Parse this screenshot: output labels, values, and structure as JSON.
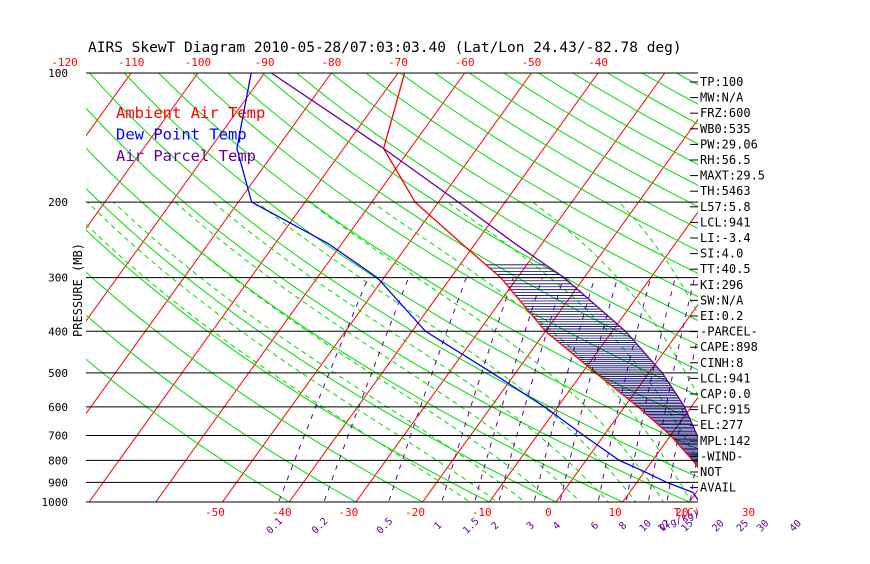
{
  "chart_data": {
    "type": "line",
    "title": "AIRS SkewT Diagram 2010-05-28/07:03:03.40 (Lat/Lon 24.43/-82.78 deg)",
    "ylabel": "PRESSURE (MB)",
    "xlabel_bottom_unit": "T(C)",
    "mixing_ratio_unit": "q(g/kg)",
    "pressure_ticks": [
      "100",
      "200",
      "300",
      "400",
      "500",
      "600",
      "700",
      "800",
      "900",
      "1000"
    ],
    "top_temp_ticks": [
      "-120",
      "-110",
      "-100",
      "-90",
      "-80",
      "-70",
      "-60",
      "-50",
      "-40"
    ],
    "bottom_temp_ticks": [
      "-50",
      "-40",
      "-30",
      "-20",
      "-10",
      "0",
      "10",
      "20",
      "30"
    ],
    "mixing_ratio_ticks": [
      "0.1",
      "0.2",
      "0.5",
      "1",
      "1.5",
      "2",
      "3",
      "4",
      "6",
      "8",
      "10",
      "12",
      "15",
      "20",
      "25",
      "30",
      "40"
    ],
    "legend": [
      {
        "name": "Ambient Air Temp",
        "color": "#ff0000"
      },
      {
        "name": "Dew Point Temp",
        "color": "#0000ff"
      },
      {
        "name": "Air Parcel Temp",
        "color": "#660099"
      }
    ],
    "series": [
      {
        "name": "Ambient Air Temp",
        "color": "#ff0000",
        "points": [
          [
            1000,
            26.3
          ],
          [
            950,
            23.0
          ],
          [
            900,
            19.5
          ],
          [
            850,
            18.5
          ],
          [
            800,
            16.0
          ],
          [
            700,
            10.0
          ],
          [
            600,
            2.0
          ],
          [
            500,
            -8.0
          ],
          [
            400,
            -20.0
          ],
          [
            300,
            -32.5
          ],
          [
            250,
            -42.0
          ],
          [
            200,
            -53.5
          ],
          [
            150,
            -64.0
          ],
          [
            100,
            -69.0
          ]
        ]
      },
      {
        "name": "Dew Point Temp",
        "color": "#0000ff",
        "points": [
          [
            1000,
            21.5
          ],
          [
            950,
            19.5
          ],
          [
            900,
            14.5
          ],
          [
            850,
            10.0
          ],
          [
            800,
            5.0
          ],
          [
            700,
            -3.0
          ],
          [
            600,
            -12.0
          ],
          [
            500,
            -23.5
          ],
          [
            400,
            -38.0
          ],
          [
            300,
            -51.0
          ],
          [
            250,
            -62.0
          ],
          [
            200,
            -78.0
          ],
          [
            150,
            -86.0
          ],
          [
            100,
            -92.0
          ]
        ]
      },
      {
        "name": "Air Parcel Temp",
        "color": "#660099",
        "points": [
          [
            1000,
            26.3
          ],
          [
            941,
            21.5
          ],
          [
            900,
            20.5
          ],
          [
            850,
            19.5
          ],
          [
            800,
            18.0
          ],
          [
            700,
            14.0
          ],
          [
            600,
            9.0
          ],
          [
            500,
            2.0
          ],
          [
            400,
            -8.0
          ],
          [
            300,
            -23.0
          ],
          [
            250,
            -34.0
          ],
          [
            200,
            -47.0
          ],
          [
            150,
            -64.0
          ],
          [
            100,
            -89.0
          ]
        ]
      }
    ],
    "stats": [
      "TP:100",
      "MW:N/A",
      "FRZ:600",
      "WB0:535",
      "PW:29.06",
      "RH:56.5",
      "MAXT:29.5",
      "TH:5463",
      "L57:5.8",
      "LCL:941",
      "LI:-3.4",
      "SI:4.0",
      "TT:40.5",
      "KI:296",
      "SW:N/A",
      "EI:0.2",
      "-PARCEL-",
      "CAPE:898",
      "CINH:8",
      "LCL:941",
      "CAP:0.0",
      "LFC:915",
      "EL:277",
      "MPL:142",
      "-WIND-",
      "NOT",
      "AVAIL"
    ],
    "colors": {
      "isotherm": "#ff0000",
      "dry_adiabat": "#00dd00",
      "moist_adiabat": "#00dd00",
      "mixing_ratio": "#660099",
      "isobar": "#000000",
      "cape_hatch": "#000066"
    }
  }
}
